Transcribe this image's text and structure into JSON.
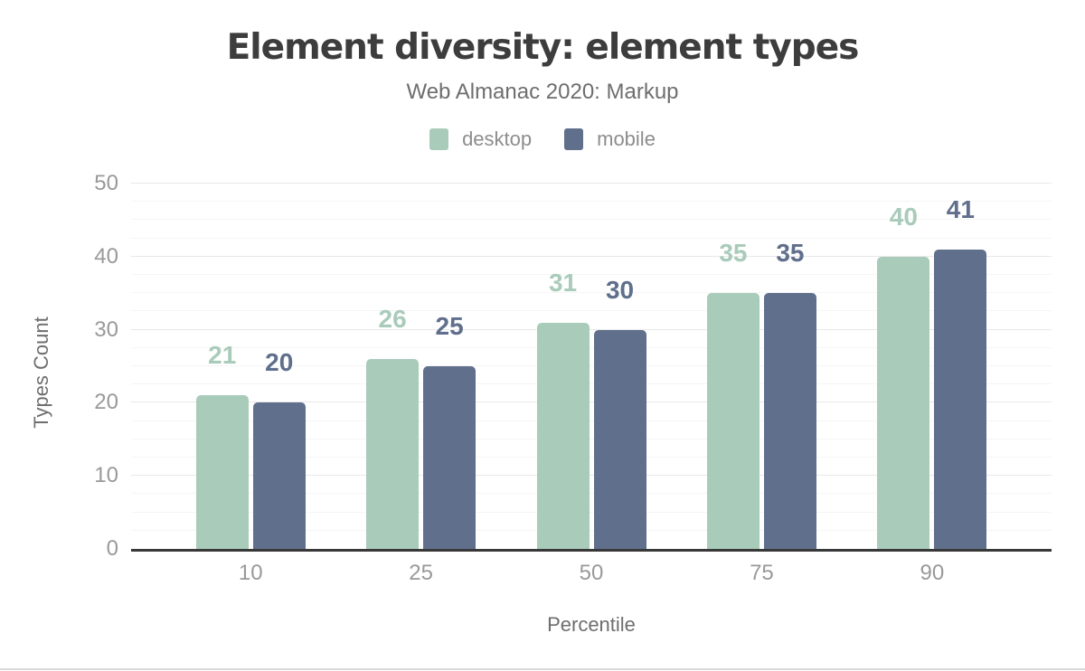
{
  "header": {
    "title": "Element diversity: element types",
    "subtitle": "Web Almanac 2020: Markup"
  },
  "chart_data": {
    "type": "bar",
    "title": "Element diversity: element types",
    "subtitle": "Web Almanac 2020: Markup",
    "categories": [
      "10",
      "25",
      "50",
      "75",
      "90"
    ],
    "series": [
      {
        "name": "desktop",
        "color": "#a9cbba",
        "values": [
          21,
          26,
          31,
          35,
          40
        ]
      },
      {
        "name": "mobile",
        "color": "#5f6f8c",
        "values": [
          20,
          25,
          30,
          35,
          41
        ]
      }
    ],
    "xlabel": "Percentile",
    "ylabel": "Types Count",
    "ylim": [
      0,
      50
    ],
    "yticks": [
      0,
      10,
      20,
      30,
      40,
      50
    ],
    "minor_grid_step": 2.5,
    "grid": true,
    "legend_position": "top",
    "data_labels": true
  },
  "colors": {
    "title_text": "#3d3d3d",
    "subtitle_text": "#6e6e6e",
    "tick_label_text": "#999999",
    "axis_title_text": "#6e6e6e",
    "axis_line": "#383838",
    "major_gridline": "#e8e8e8",
    "minor_gridline": "#f5f5f5",
    "desktop_series": "#a9cbba",
    "mobile_series": "#5f6f8c"
  }
}
